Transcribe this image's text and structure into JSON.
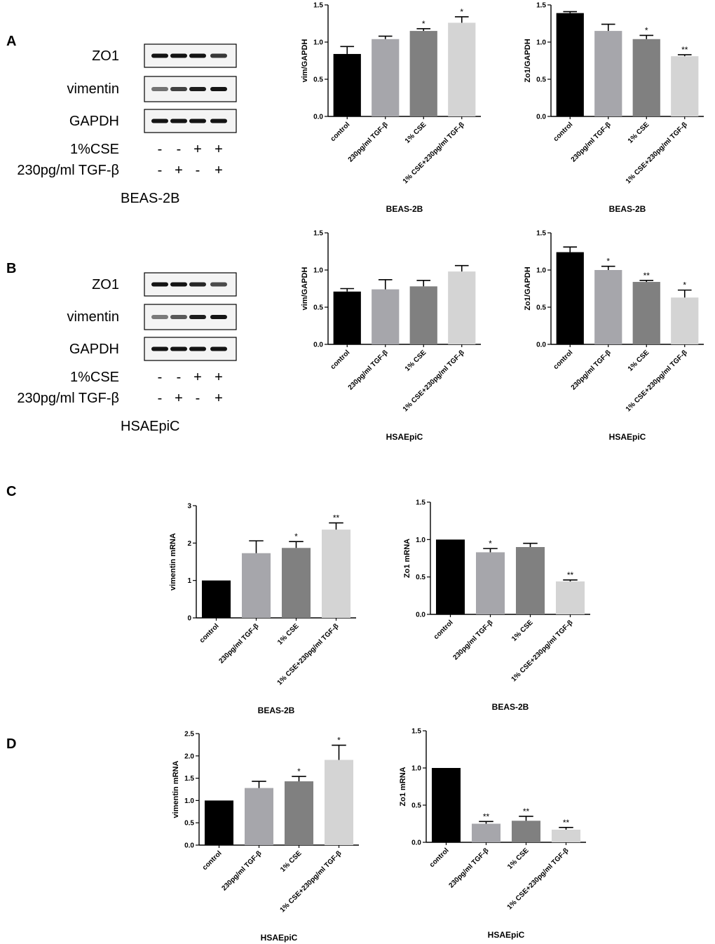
{
  "panels": {
    "A": "A",
    "B": "B",
    "C": "C",
    "D": "D"
  },
  "blots": [
    {
      "id": "A",
      "rows": [
        "ZO1",
        "vimentin",
        "GAPDH"
      ],
      "treat_rows": [
        {
          "label": "1%CSE",
          "signs": [
            "-",
            "-",
            "+",
            "+"
          ]
        },
        {
          "label": "230pg/ml TGF-β",
          "signs": [
            "-",
            "+",
            "-",
            "+"
          ]
        }
      ],
      "cell_line": "BEAS-2B"
    },
    {
      "id": "B",
      "rows": [
        "ZO1",
        "vimentin",
        "GAPDH"
      ],
      "treat_rows": [
        {
          "label": "1%CSE",
          "signs": [
            "-",
            "-",
            "+",
            "+"
          ]
        },
        {
          "label": "230pg/ml TGF-β",
          "signs": [
            "-",
            "+",
            "-",
            "+"
          ]
        }
      ],
      "cell_line": "HSAEpiC"
    }
  ],
  "bar_colors": [
    "#000000",
    "#a6a6ab",
    "#808080",
    "#d4d4d4"
  ],
  "chart_data": [
    {
      "type": "bar",
      "id": "A-vim",
      "ylabel": "vim/GAPDH",
      "xlabel": "BEAS-2B",
      "ylim": [
        0,
        1.5
      ],
      "yticks": [
        "0.0",
        "0.5",
        "1.0",
        "1.5"
      ],
      "categories": [
        "control",
        "230pg/ml TGF-β",
        "1% CSE",
        "1% CSE+230pg/ml TGF-β"
      ],
      "values": [
        0.84,
        1.04,
        1.15,
        1.26
      ],
      "errors": [
        0.1,
        0.04,
        0.03,
        0.08
      ],
      "sig": [
        "",
        "",
        "*",
        "*"
      ]
    },
    {
      "type": "bar",
      "id": "A-zo1",
      "ylabel": "Zo1/GAPDH",
      "xlabel": "BEAS-2B",
      "ylim": [
        0,
        1.5
      ],
      "yticks": [
        "0.0",
        "0.5",
        "1.0",
        "1.5"
      ],
      "categories": [
        "control",
        "230pg/ml TGF-β",
        "1% CSE",
        "1% CSE+230pg/ml TGF-β"
      ],
      "values": [
        1.39,
        1.15,
        1.04,
        0.81
      ],
      "errors": [
        0.02,
        0.09,
        0.05,
        0.02
      ],
      "sig": [
        "",
        "",
        "*",
        "**"
      ]
    },
    {
      "type": "bar",
      "id": "B-vim",
      "ylabel": "vim/GAPDH",
      "xlabel": "HSAEpiC",
      "ylim": [
        0,
        1.5
      ],
      "yticks": [
        "0.0",
        "0.5",
        "1.0",
        "1.5"
      ],
      "categories": [
        "control",
        "230pg/ml TGF-β",
        "1% CSE",
        "1% CSE+230pg/ml TGF-β"
      ],
      "values": [
        0.71,
        0.74,
        0.78,
        0.98
      ],
      "errors": [
        0.04,
        0.13,
        0.08,
        0.08
      ],
      "sig": [
        "",
        "",
        "",
        ""
      ]
    },
    {
      "type": "bar",
      "id": "B-zo1",
      "ylabel": "Zo1/GAPDH",
      "xlabel": "HSAEpiC",
      "ylim": [
        0,
        1.5
      ],
      "yticks": [
        "0.0",
        "0.5",
        "1.0",
        "1.5"
      ],
      "categories": [
        "control",
        "230pg/ml TGF-β",
        "1% CSE",
        "1% CSE+230pg/ml TGF-β"
      ],
      "values": [
        1.24,
        1.0,
        0.84,
        0.63
      ],
      "errors": [
        0.07,
        0.05,
        0.02,
        0.1
      ],
      "sig": [
        "",
        "*",
        "**",
        "*"
      ]
    },
    {
      "type": "bar",
      "id": "C-vim",
      "ylabel": "vimentin mRNA",
      "xlabel": "BEAS-2B",
      "ylim": [
        0,
        3
      ],
      "yticks": [
        "0",
        "1",
        "2",
        "3"
      ],
      "categories": [
        "control",
        "230pg/ml TGF-β",
        "1% CSE",
        "1% CSE+230pg/ml TGF-β"
      ],
      "values": [
        1.0,
        1.73,
        1.87,
        2.36
      ],
      "errors": [
        0,
        0.33,
        0.17,
        0.18
      ],
      "sig": [
        "",
        "",
        "*",
        "**"
      ]
    },
    {
      "type": "bar",
      "id": "C-zo1",
      "ylabel": "Zo1 mRNA",
      "xlabel": "BEAS-2B",
      "ylim": [
        0,
        1.5
      ],
      "yticks": [
        "0.0",
        "0.5",
        "1.0",
        "1.5"
      ],
      "categories": [
        "control",
        "230pg/ml TGF-β",
        "1% CSE",
        "1% CSE+230pg/ml TGF-β"
      ],
      "values": [
        1.0,
        0.83,
        0.9,
        0.44
      ],
      "errors": [
        0,
        0.05,
        0.05,
        0.02
      ],
      "sig": [
        "",
        "*",
        "",
        "**"
      ]
    },
    {
      "type": "bar",
      "id": "D-vim",
      "ylabel": "vimentin mRNA",
      "xlabel": "HSAEpiC",
      "ylim": [
        0,
        2.5
      ],
      "yticks": [
        "0.0",
        "0.5",
        "1.0",
        "1.5",
        "2.0",
        "2.5"
      ],
      "categories": [
        "control",
        "230pg/ml TGF-β",
        "1% CSE",
        "1% CSE+230pg/ml TGF-β"
      ],
      "values": [
        1.0,
        1.28,
        1.43,
        1.91
      ],
      "errors": [
        0,
        0.15,
        0.11,
        0.33
      ],
      "sig": [
        "",
        "",
        "*",
        "*"
      ]
    },
    {
      "type": "bar",
      "id": "D-zo1",
      "ylabel": "Zo1 mRNA",
      "xlabel": "HSAEpiC",
      "ylim": [
        0,
        1.5
      ],
      "yticks": [
        "0.0",
        "0.5",
        "1.0",
        "1.5"
      ],
      "categories": [
        "control",
        "230pg/ml TGF-β",
        "1% CSE",
        "1% CSE+230pg/ml TGF-β"
      ],
      "values": [
        1.0,
        0.25,
        0.29,
        0.17
      ],
      "errors": [
        0,
        0.03,
        0.06,
        0.03
      ],
      "sig": [
        "",
        "**",
        "**",
        "**"
      ]
    }
  ]
}
